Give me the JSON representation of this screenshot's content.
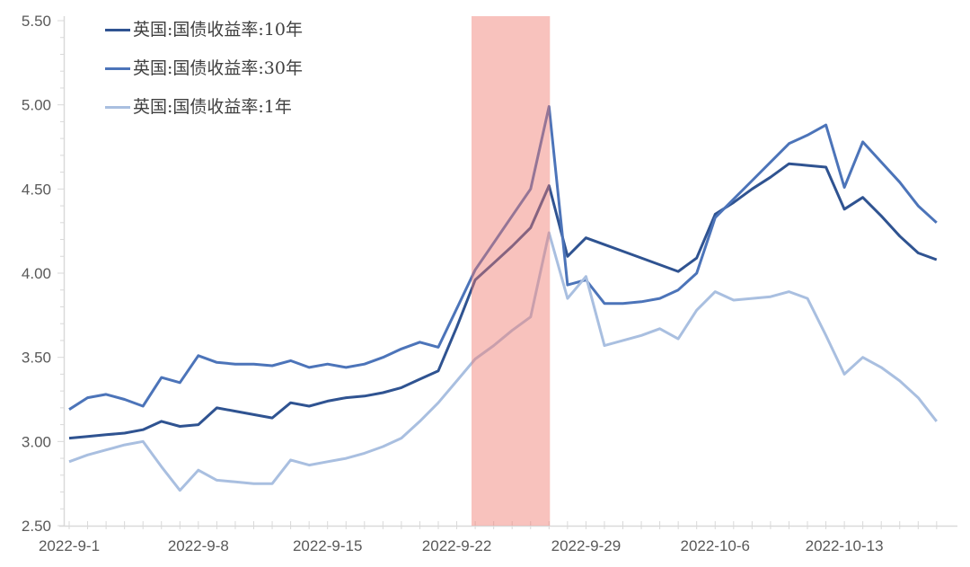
{
  "chart_data": {
    "type": "line",
    "title": "",
    "days": 48,
    "start_date": "2022-9-1",
    "y_axis": {
      "min": 2.5,
      "max": 5.5,
      "major_step": 0.5,
      "minor_step": 0.1,
      "tick_labels": [
        "2.50",
        "3.00",
        "3.50",
        "4.00",
        "4.50",
        "5.00",
        "5.50"
      ]
    },
    "x_axis": {
      "ticks": [
        {
          "label": "2022-9-1",
          "day": 0
        },
        {
          "label": "2022-9-8",
          "day": 7
        },
        {
          "label": "2022-9-15",
          "day": 14
        },
        {
          "label": "2022-9-22",
          "day": 21
        },
        {
          "label": "2022-9-29",
          "day": 28
        },
        {
          "label": "2022-10-6",
          "day": 35
        },
        {
          "label": "2022-10-13",
          "day": 42
        }
      ]
    },
    "highlight_band": {
      "start_day": 21.8,
      "end_day": 26.05,
      "approx_dates": "2022-9-23 ~ 2022-9-27",
      "color": "#F0786C",
      "opacity": 0.45
    },
    "grid": "off",
    "legend_position": "top-left",
    "axis_line_color": "#D9D9D9",
    "axis_label_color": "#595959",
    "series": [
      {
        "name": "英国:国债收益率:10年",
        "color": "#2F5391",
        "values": [
          3.02,
          3.03,
          3.04,
          3.05,
          3.07,
          3.12,
          3.09,
          3.1,
          3.2,
          3.18,
          3.16,
          3.14,
          3.23,
          3.21,
          3.24,
          3.26,
          3.27,
          3.29,
          3.32,
          3.37,
          3.42,
          3.68,
          3.96,
          4.06,
          4.16,
          4.27,
          4.52,
          4.1,
          4.21,
          4.17,
          4.13,
          4.09,
          4.05,
          4.01,
          4.09,
          4.35,
          4.42,
          4.5,
          4.57,
          4.65,
          4.64,
          4.63,
          4.38,
          4.45,
          4.34,
          4.22,
          4.12,
          4.08
        ]
      },
      {
        "name": "英国:国债收益率:30年",
        "color": "#4C74B9",
        "values": [
          3.19,
          3.26,
          3.28,
          3.25,
          3.21,
          3.38,
          3.35,
          3.51,
          3.47,
          3.46,
          3.46,
          3.45,
          3.48,
          3.44,
          3.46,
          3.44,
          3.46,
          3.5,
          3.55,
          3.59,
          3.56,
          3.79,
          4.02,
          4.18,
          4.34,
          4.5,
          4.99,
          3.93,
          3.96,
          3.82,
          3.82,
          3.83,
          3.85,
          3.9,
          4.0,
          4.33,
          4.44,
          4.55,
          4.66,
          4.77,
          4.82,
          4.88,
          4.51,
          4.78,
          4.66,
          4.54,
          4.4,
          4.3
        ]
      },
      {
        "name": "英国:国债收益率:1年",
        "color": "#A9BFE0",
        "values": [
          2.88,
          2.92,
          2.95,
          2.98,
          3.0,
          2.85,
          2.71,
          2.83,
          2.77,
          2.76,
          2.75,
          2.75,
          2.89,
          2.86,
          2.88,
          2.9,
          2.93,
          2.97,
          3.02,
          3.12,
          3.23,
          3.36,
          3.49,
          3.57,
          3.66,
          3.74,
          4.24,
          3.85,
          3.98,
          3.57,
          3.6,
          3.63,
          3.67,
          3.61,
          3.78,
          3.89,
          3.84,
          3.85,
          3.86,
          3.89,
          3.85,
          3.63,
          3.4,
          3.5,
          3.44,
          3.36,
          3.26,
          3.12
        ]
      }
    ]
  }
}
